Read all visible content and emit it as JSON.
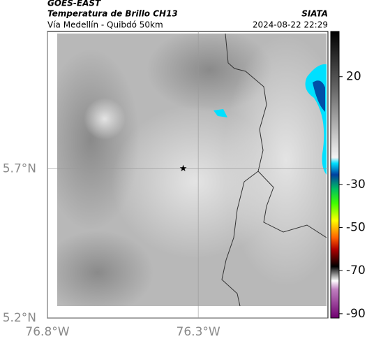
{
  "header": {
    "satellite": "GOES-EAST",
    "title": "Temperatura de Brillo CH13",
    "subtitle": "Vía Medellín - Quibdó 50km",
    "source": "SIATA",
    "datetime": "2024-08-22 22:29"
  },
  "map": {
    "xlim": [
      -76.8,
      -75.87
    ],
    "ylim": [
      5.2,
      6.16
    ],
    "xticks": [
      {
        "value": -76.8,
        "label": "76.8°W"
      },
      {
        "value": -76.3,
        "label": "76.3°W"
      }
    ],
    "yticks": [
      {
        "value": 5.2,
        "label": "5.2°N"
      },
      {
        "value": 5.7,
        "label": "5.7°N"
      }
    ],
    "marker": {
      "lon": -76.35,
      "lat": 5.7
    }
  },
  "colorbar": {
    "lim": [
      -92,
      41
    ],
    "ticks": [
      20,
      -30,
      -50,
      -70,
      -90
    ]
  }
}
